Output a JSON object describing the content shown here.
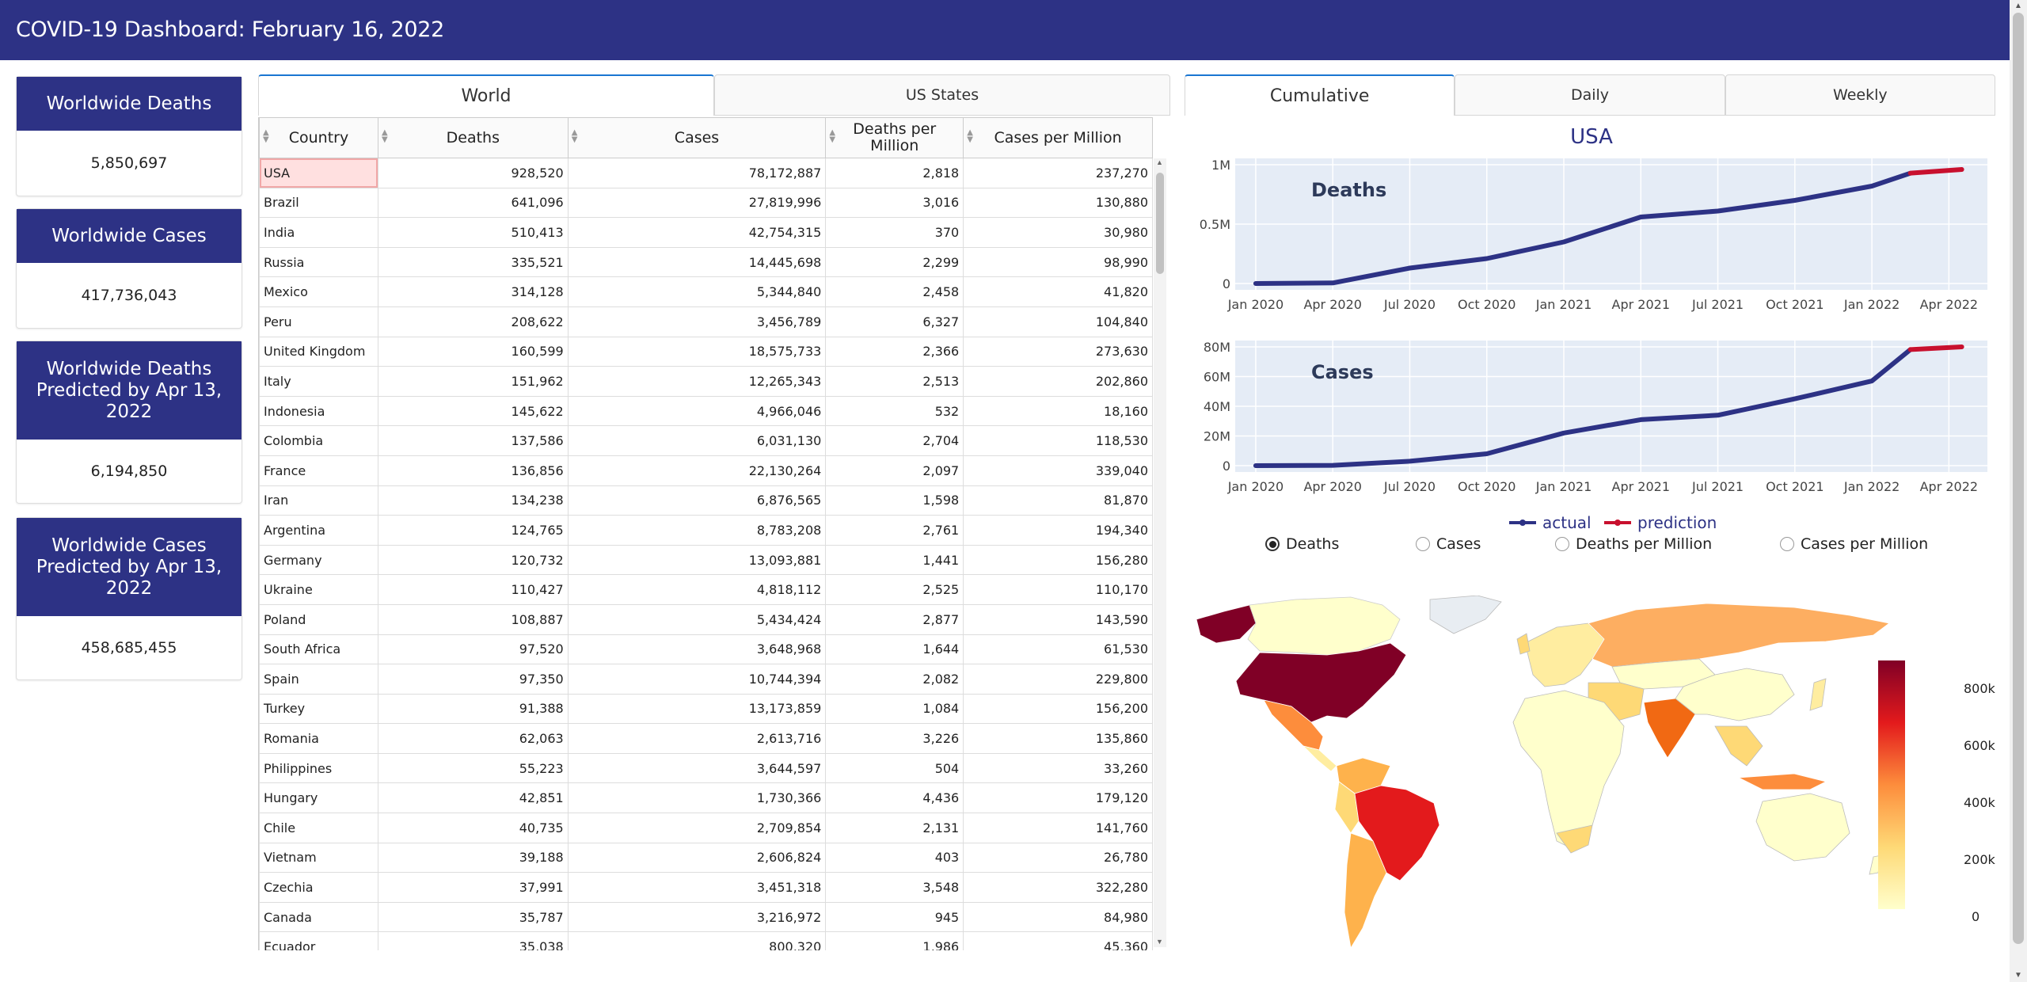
{
  "header": {
    "title": "COVID-19 Dashboard: February 16, 2022"
  },
  "cards": [
    {
      "label": "Worldwide Deaths",
      "value": "5,850,697"
    },
    {
      "label": "Worldwide Cases",
      "value": "417,736,043"
    },
    {
      "label": "Worldwide Deaths Predicted by Apr 13, 2022",
      "value": "6,194,850"
    },
    {
      "label": "Worldwide Cases Predicted by Apr 13, 2022",
      "value": "458,685,455"
    }
  ],
  "table_tabs": [
    "World",
    "US States"
  ],
  "chart_tabs": [
    "Cumulative",
    "Daily",
    "Weekly"
  ],
  "table": {
    "columns": [
      "Country",
      "Deaths",
      "Cases",
      "Deaths per Million",
      "Cases per Million"
    ],
    "rows": [
      [
        "USA",
        "928,520",
        "78,172,887",
        "2,818",
        "237,270"
      ],
      [
        "Brazil",
        "641,096",
        "27,819,996",
        "3,016",
        "130,880"
      ],
      [
        "India",
        "510,413",
        "42,754,315",
        "370",
        "30,980"
      ],
      [
        "Russia",
        "335,521",
        "14,445,698",
        "2,299",
        "98,990"
      ],
      [
        "Mexico",
        "314,128",
        "5,344,840",
        "2,458",
        "41,820"
      ],
      [
        "Peru",
        "208,622",
        "3,456,789",
        "6,327",
        "104,840"
      ],
      [
        "United Kingdom",
        "160,599",
        "18,575,733",
        "2,366",
        "273,630"
      ],
      [
        "Italy",
        "151,962",
        "12,265,343",
        "2,513",
        "202,860"
      ],
      [
        "Indonesia",
        "145,622",
        "4,966,046",
        "532",
        "18,160"
      ],
      [
        "Colombia",
        "137,586",
        "6,031,130",
        "2,704",
        "118,530"
      ],
      [
        "France",
        "136,856",
        "22,130,264",
        "2,097",
        "339,040"
      ],
      [
        "Iran",
        "134,238",
        "6,876,565",
        "1,598",
        "81,870"
      ],
      [
        "Argentina",
        "124,765",
        "8,783,208",
        "2,761",
        "194,340"
      ],
      [
        "Germany",
        "120,732",
        "13,093,881",
        "1,441",
        "156,280"
      ],
      [
        "Ukraine",
        "110,427",
        "4,818,112",
        "2,525",
        "110,170"
      ],
      [
        "Poland",
        "108,887",
        "5,434,424",
        "2,877",
        "143,590"
      ],
      [
        "South Africa",
        "97,520",
        "3,648,968",
        "1,644",
        "61,530"
      ],
      [
        "Spain",
        "97,350",
        "10,744,394",
        "2,082",
        "229,800"
      ],
      [
        "Turkey",
        "91,388",
        "13,173,859",
        "1,084",
        "156,200"
      ],
      [
        "Romania",
        "62,063",
        "2,613,716",
        "3,226",
        "135,860"
      ],
      [
        "Philippines",
        "55,223",
        "3,644,597",
        "504",
        "33,260"
      ],
      [
        "Hungary",
        "42,851",
        "1,730,366",
        "4,436",
        "179,120"
      ],
      [
        "Chile",
        "40,735",
        "2,709,854",
        "2,131",
        "141,760"
      ],
      [
        "Vietnam",
        "39,188",
        "2,606,824",
        "403",
        "26,780"
      ],
      [
        "Czechia",
        "37,991",
        "3,451,318",
        "3,548",
        "322,280"
      ],
      [
        "Canada",
        "35,787",
        "3,216,972",
        "945",
        "84,980"
      ],
      [
        "Ecuador",
        "35,038",
        "800,320",
        "1,986",
        "45,360"
      ]
    ]
  },
  "chart": {
    "title": "USA",
    "deaths_label": "Deaths",
    "cases_label": "Cases",
    "x_ticks": [
      "Jan 2020",
      "Apr 2020",
      "Jul 2020",
      "Oct 2020",
      "Jan 2021",
      "Apr 2021",
      "Jul 2021",
      "Oct 2021",
      "Jan 2022",
      "Apr 2022"
    ],
    "deaths_y_ticks": [
      "1M",
      "0.5M",
      "0"
    ],
    "cases_y_ticks": [
      "80M",
      "60M",
      "40M",
      "20M",
      "0"
    ],
    "legend": [
      "actual",
      "prediction"
    ],
    "colors": {
      "actual": "#2d3285",
      "prediction": "#c8102e",
      "plot_bg": "#e5ecf6"
    }
  },
  "chart_data": [
    {
      "type": "line",
      "title": "Deaths",
      "x": [
        "Jan 2020",
        "Apr 2020",
        "Jul 2020",
        "Oct 2020",
        "Jan 2021",
        "Apr 2021",
        "Jul 2021",
        "Oct 2021",
        "Jan 2022",
        "Feb 2022",
        "Apr 2022"
      ],
      "series": [
        {
          "name": "actual",
          "values": [
            0,
            5000,
            130000,
            210000,
            350000,
            560000,
            610000,
            700000,
            820000,
            928520,
            null
          ]
        },
        {
          "name": "prediction",
          "values": [
            null,
            null,
            null,
            null,
            null,
            null,
            null,
            null,
            null,
            928520,
            960000
          ]
        }
      ],
      "ylim": [
        0,
        1000000
      ]
    },
    {
      "type": "line",
      "title": "Cases",
      "x": [
        "Jan 2020",
        "Apr 2020",
        "Jul 2020",
        "Oct 2020",
        "Jan 2021",
        "Apr 2021",
        "Jul 2021",
        "Oct 2021",
        "Jan 2022",
        "Feb 2022",
        "Apr 2022"
      ],
      "series": [
        {
          "name": "actual",
          "values": [
            0,
            200000,
            3000000,
            8000000,
            22000000,
            31000000,
            34000000,
            45000000,
            57000000,
            78172887,
            null
          ]
        },
        {
          "name": "prediction",
          "values": [
            null,
            null,
            null,
            null,
            null,
            null,
            null,
            null,
            null,
            78172887,
            80000000
          ]
        }
      ],
      "ylim": [
        0,
        80000000
      ]
    }
  ],
  "radio_options": [
    "Deaths",
    "Cases",
    "Deaths per Million",
    "Cases per Million"
  ],
  "map": {
    "colorbar_ticks": [
      "800k",
      "600k",
      "400k",
      "200k",
      "0"
    ]
  }
}
